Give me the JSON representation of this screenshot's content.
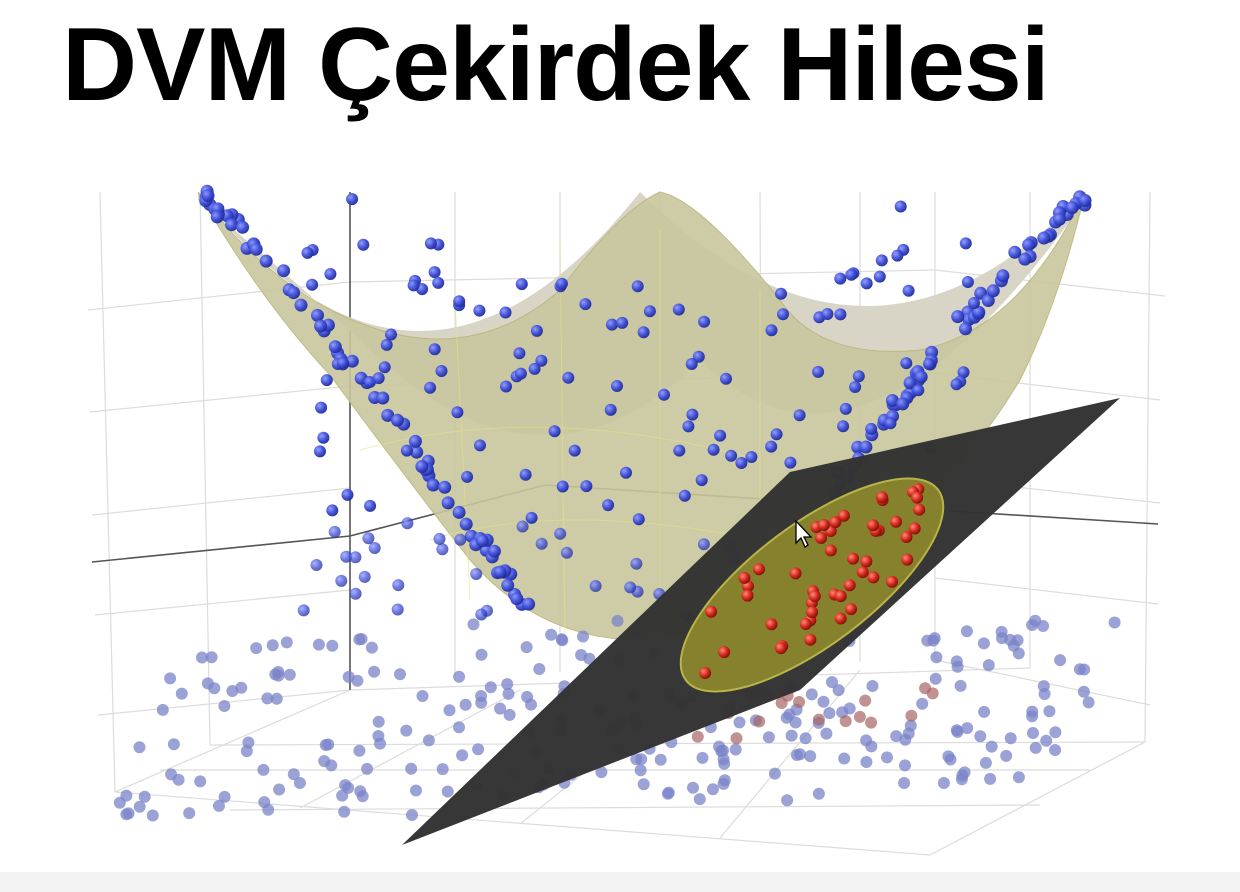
{
  "slide": {
    "title": "DVM Çekirdek Hilesi"
  },
  "figure": {
    "colors": {
      "class_outer": "#3e4ed8",
      "class_inner": "#d42a1c",
      "surface_front": "#c9c79e",
      "surface_back": "#d6d3c4",
      "separating_plane": "#333333",
      "intersection_region": "#8f8a2c",
      "grid_line": "#dcdcdc",
      "axis_line": "#555555"
    },
    "icons": [
      "mouse-cursor-icon"
    ]
  }
}
